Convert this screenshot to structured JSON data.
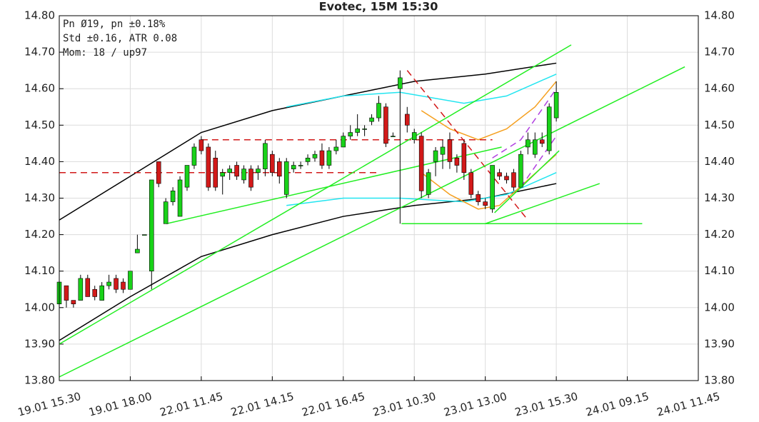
{
  "chart_data": {
    "type": "candlestick",
    "title": "Evotec, 15M 15:30",
    "annotations": [
      "Pn  Ø19, pn ±0.18%",
      "Std ±0.16, ATR 0.08",
      "Mom: 18 / up97"
    ],
    "x": [
      0,
      1,
      2,
      3,
      4,
      5,
      6,
      7,
      8,
      9,
      10,
      11,
      12,
      13,
      14,
      15,
      16,
      17,
      18,
      19,
      20,
      21,
      22,
      23,
      24,
      25,
      26,
      27,
      28,
      29,
      30,
      31,
      32,
      33,
      34,
      35,
      36,
      37,
      38,
      39,
      40,
      41,
      42,
      43,
      44,
      45,
      46,
      47,
      48,
      49,
      50,
      51,
      52,
      53,
      54,
      55,
      56,
      57,
      58,
      59,
      60,
      61,
      62,
      63,
      64,
      65,
      66,
      67,
      68,
      69,
      70
    ],
    "open": [
      14.01,
      14.06,
      14.02,
      14.02,
      14.08,
      14.05,
      14.02,
      14.06,
      14.08,
      14.07,
      14.05,
      14.15,
      14.2,
      14.1,
      14.4,
      14.23,
      14.29,
      14.25,
      14.33,
      14.39,
      14.46,
      14.44,
      14.41,
      14.36,
      14.37,
      14.39,
      14.35,
      14.38,
      14.37,
      14.38,
      14.42,
      14.4,
      14.31,
      14.38,
      14.39,
      14.4,
      14.41,
      14.43,
      14.39,
      14.43,
      14.44,
      14.47,
      14.48,
      14.49,
      14.51,
      14.52,
      14.55,
      14.47,
      14.6,
      14.53,
      14.46,
      14.47,
      14.31,
      14.4,
      14.42,
      14.46,
      14.41,
      14.45,
      14.37,
      14.31,
      14.29,
      14.27,
      14.37,
      14.36,
      14.37,
      14.33,
      14.44,
      14.42,
      14.46,
      14.43,
      14.52
    ],
    "high": [
      14.08,
      14.06,
      14.02,
      14.09,
      14.09,
      14.06,
      14.07,
      14.09,
      14.09,
      14.08,
      14.1,
      14.2,
      14.2,
      14.35,
      14.4,
      14.3,
      14.33,
      14.36,
      14.39,
      14.45,
      14.47,
      14.45,
      14.43,
      14.38,
      14.39,
      14.4,
      14.39,
      14.39,
      14.39,
      14.46,
      14.43,
      14.41,
      14.41,
      14.4,
      14.4,
      14.42,
      14.43,
      14.45,
      14.44,
      14.46,
      14.48,
      14.5,
      14.53,
      14.5,
      14.53,
      14.58,
      14.56,
      14.48,
      14.65,
      14.55,
      14.49,
      14.48,
      14.38,
      14.44,
      14.46,
      14.48,
      14.42,
      14.46,
      14.38,
      14.32,
      14.3,
      14.39,
      14.38,
      14.37,
      14.38,
      14.43,
      14.48,
      14.48,
      14.48,
      14.56,
      14.62
    ],
    "low": [
      14.0,
      14.0,
      14.0,
      14.02,
      14.03,
      14.02,
      14.02,
      14.05,
      14.04,
      14.04,
      14.05,
      14.15,
      14.2,
      14.05,
      14.33,
      14.23,
      14.28,
      14.25,
      14.32,
      14.38,
      14.42,
      14.32,
      14.32,
      14.31,
      14.35,
      14.35,
      14.34,
      14.32,
      14.35,
      14.36,
      14.36,
      14.34,
      14.3,
      14.37,
      14.38,
      14.39,
      14.4,
      14.38,
      14.38,
      14.42,
      14.44,
      14.46,
      14.47,
      14.47,
      14.5,
      14.51,
      14.44,
      14.47,
      14.23,
      14.48,
      14.45,
      14.3,
      14.3,
      14.36,
      14.38,
      14.38,
      14.37,
      14.35,
      14.3,
      14.28,
      14.27,
      14.26,
      14.35,
      14.34,
      14.32,
      14.33,
      14.42,
      14.41,
      14.44,
      14.42,
      14.51
    ],
    "close": [
      14.07,
      14.02,
      14.01,
      14.08,
      14.03,
      14.03,
      14.06,
      14.07,
      14.05,
      14.05,
      14.1,
      14.16,
      14.2,
      14.35,
      14.34,
      14.29,
      14.32,
      14.35,
      14.39,
      14.44,
      14.43,
      14.33,
      14.33,
      14.37,
      14.38,
      14.36,
      14.38,
      14.33,
      14.38,
      14.45,
      14.37,
      14.36,
      14.4,
      14.39,
      14.39,
      14.41,
      14.42,
      14.39,
      14.43,
      14.44,
      14.47,
      14.48,
      14.49,
      14.49,
      14.52,
      14.56,
      14.45,
      14.47,
      14.63,
      14.5,
      14.48,
      14.32,
      14.37,
      14.43,
      14.44,
      14.4,
      14.39,
      14.37,
      14.31,
      14.29,
      14.28,
      14.39,
      14.36,
      14.35,
      14.33,
      14.42,
      14.46,
      14.46,
      14.45,
      14.55,
      14.59
    ],
    "up_color": "#19d219",
    "down_color": "#d21919",
    "overlays": [
      {
        "x": [
          0,
          10,
          20,
          30,
          40,
          50,
          60,
          70
        ],
        "values": [
          14.24,
          14.36,
          14.48,
          14.54,
          14.58,
          14.62,
          14.64,
          14.67
        ],
        "color": "#000000",
        "dash": false
      },
      {
        "x": [
          0,
          10,
          20,
          30,
          40,
          50,
          60,
          70
        ],
        "values": [
          13.91,
          14.03,
          14.14,
          14.2,
          14.25,
          14.28,
          14.3,
          14.34
        ],
        "color": "#000000",
        "dash": false
      },
      {
        "x": [
          32,
          40,
          48,
          57,
          63,
          70
        ],
        "values": [
          14.55,
          14.58,
          14.59,
          14.56,
          14.58,
          14.64
        ],
        "color": "#22e5f0",
        "dash": false
      },
      {
        "x": [
          32,
          40,
          48,
          57,
          63,
          70
        ],
        "values": [
          14.28,
          14.3,
          14.3,
          14.29,
          14.31,
          14.37
        ],
        "color": "#22e5f0",
        "dash": false
      },
      {
        "x": [
          51,
          55,
          59,
          63,
          67,
          70
        ],
        "values": [
          14.54,
          14.49,
          14.46,
          14.49,
          14.55,
          14.62
        ],
        "color": "#f5a020",
        "dash": false
      },
      {
        "x": [
          51,
          55,
          59,
          62,
          66,
          70
        ],
        "values": [
          14.37,
          14.31,
          14.27,
          14.28,
          14.35,
          14.42
        ],
        "color": "#f5a020",
        "dash": false
      },
      {
        "x": [
          61,
          65,
          70
        ],
        "values": [
          14.41,
          14.46,
          14.6
        ],
        "color": "#b040e0",
        "dash": true
      },
      {
        "x": [
          65,
          70
        ],
        "values": [
          14.33,
          14.47
        ],
        "color": "#b040e0",
        "dash": true
      },
      {
        "x": [
          20,
          61
        ],
        "values": [
          14.46,
          14.46
        ],
        "color": "#d21919",
        "dash": true
      },
      {
        "x": [
          0,
          45
        ],
        "values": [
          14.37,
          14.37
        ],
        "color": "#d21919",
        "dash": true
      },
      {
        "x": [
          49,
          66
        ],
        "values": [
          14.65,
          14.24
        ],
        "color": "#d21919",
        "dash": true
      },
      {
        "x": [
          0,
          72.1
        ],
        "values": [
          13.9,
          14.72
        ],
        "color": "#22ee22",
        "dash": false
      },
      {
        "x": [
          0,
          88.1
        ],
        "values": [
          13.81,
          14.66
        ],
        "color": "#22ee22",
        "dash": false
      },
      {
        "x": [
          15.1,
          62.3
        ],
        "values": [
          14.23,
          14.44
        ],
        "color": "#22ee22",
        "dash": false
      },
      {
        "x": [
          48.2,
          82.1
        ],
        "values": [
          14.23,
          14.23
        ],
        "color": "#22ee22",
        "dash": false
      },
      {
        "x": [
          60,
          76.1
        ],
        "values": [
          14.23,
          14.34
        ],
        "color": "#22ee22",
        "dash": false
      },
      {
        "x": [
          61.3,
          70.4
        ],
        "values": [
          14.26,
          14.43
        ],
        "color": "#22ee22",
        "dash": false
      }
    ],
    "xlim": [
      0,
      90
    ],
    "xticks": [
      {
        "value": 0,
        "label": "19.01 15.30"
      },
      {
        "value": 10,
        "label": "19.01 18.00"
      },
      {
        "value": 20,
        "label": "22.01 11.45"
      },
      {
        "value": 30,
        "label": "22.01 14.15"
      },
      {
        "value": 40,
        "label": "22.01 16.45"
      },
      {
        "value": 50,
        "label": "23.01 10.30"
      },
      {
        "value": 60,
        "label": "23.01 13.00"
      },
      {
        "value": 70,
        "label": "23.01 15.30"
      },
      {
        "value": 80,
        "label": "24.01 09.15"
      },
      {
        "value": 90,
        "label": "24.01 11.45"
      }
    ],
    "ylim": [
      13.8,
      14.8
    ],
    "yticks": [
      {
        "value": 13.8,
        "label": "13.80"
      },
      {
        "value": 13.9,
        "label": "13.90"
      },
      {
        "value": 14.0,
        "label": "14.00"
      },
      {
        "value": 14.1,
        "label": "14.10"
      },
      {
        "value": 14.2,
        "label": "14.20"
      },
      {
        "value": 14.3,
        "label": "14.30"
      },
      {
        "value": 14.4,
        "label": "14.40"
      },
      {
        "value": 14.5,
        "label": "14.50"
      },
      {
        "value": 14.6,
        "label": "14.60"
      },
      {
        "value": 14.7,
        "label": "14.70"
      },
      {
        "value": 14.8,
        "label": "14.80"
      }
    ],
    "grid": true
  }
}
